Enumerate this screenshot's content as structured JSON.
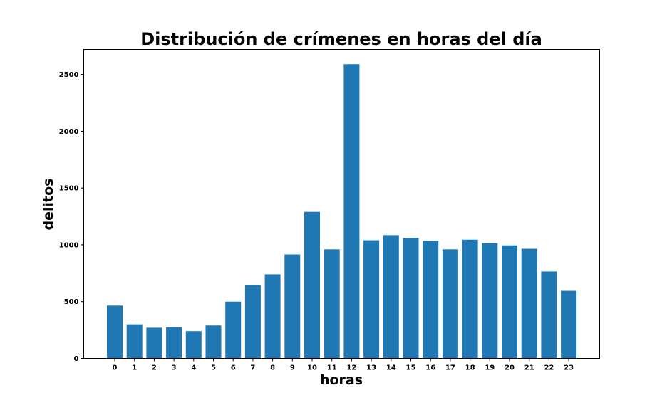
{
  "chart_data": {
    "type": "bar",
    "title": "Distribución de crímenes en horas del día",
    "xlabel": "horas",
    "ylabel": "delitos",
    "categories": [
      "0",
      "1",
      "2",
      "3",
      "4",
      "5",
      "6",
      "7",
      "8",
      "9",
      "10",
      "11",
      "12",
      "13",
      "14",
      "15",
      "16",
      "17",
      "18",
      "19",
      "20",
      "21",
      "22",
      "23"
    ],
    "values": [
      465,
      300,
      270,
      275,
      240,
      290,
      500,
      645,
      740,
      915,
      1290,
      960,
      2590,
      1040,
      1085,
      1060,
      1035,
      960,
      1045,
      1015,
      995,
      965,
      765,
      595
    ],
    "ylim": [
      0,
      2720
    ],
    "yticks": [
      "0",
      "500",
      "1000",
      "1500",
      "2000",
      "2500"
    ],
    "grid": false,
    "colors": {
      "bar": "#1f77b4",
      "axis": "#000000",
      "background": "#ffffff"
    }
  }
}
